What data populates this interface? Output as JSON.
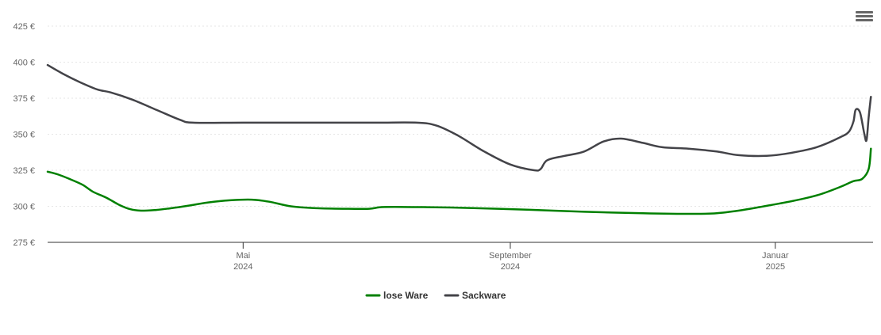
{
  "chart_data": {
    "type": "line",
    "title": "",
    "xlabel": "",
    "ylabel": "",
    "y_ticks": [
      "275 €",
      "300 €",
      "325 €",
      "350 €",
      "375 €",
      "400 €",
      "425 €"
    ],
    "y_tick_values": [
      275,
      300,
      325,
      350,
      375,
      400,
      425
    ],
    "ylim": [
      275,
      425
    ],
    "x_range": [
      "2024-02-01",
      "2025-02-15"
    ],
    "x_ticks": [
      {
        "date": "2024-05-01",
        "month": "Mai",
        "year": "2024"
      },
      {
        "date": "2024-09-01",
        "month": "September",
        "year": "2024"
      },
      {
        "date": "2025-01-01",
        "month": "Januar",
        "year": "2025"
      }
    ],
    "grid": true,
    "legend_position": "bottom-center",
    "series": [
      {
        "name": "lose Ware",
        "color": "#008000",
        "points": [
          [
            "2024-02-01",
            324
          ],
          [
            "2024-02-06",
            322
          ],
          [
            "2024-02-11",
            319
          ],
          [
            "2024-02-17",
            315
          ],
          [
            "2024-02-22",
            310
          ],
          [
            "2024-02-28",
            306
          ],
          [
            "2024-03-05",
            301
          ],
          [
            "2024-03-10",
            298
          ],
          [
            "2024-03-15",
            297
          ],
          [
            "2024-03-22",
            297.5
          ],
          [
            "2024-03-28",
            298.5
          ],
          [
            "2024-04-06",
            300.5
          ],
          [
            "2024-04-15",
            302.7
          ],
          [
            "2024-04-25",
            304.2
          ],
          [
            "2024-05-05",
            304.6
          ],
          [
            "2024-05-13",
            303.2
          ],
          [
            "2024-05-23",
            300.0
          ],
          [
            "2024-06-04",
            298.7
          ],
          [
            "2024-06-16",
            298.3
          ],
          [
            "2024-06-28",
            298.3
          ],
          [
            "2024-07-05",
            299.5
          ],
          [
            "2024-07-25",
            299.4
          ],
          [
            "2024-08-15",
            298.8
          ],
          [
            "2024-09-10",
            297.6
          ],
          [
            "2024-10-05",
            296.2
          ],
          [
            "2024-11-01",
            295.2
          ],
          [
            "2024-11-25",
            294.8
          ],
          [
            "2024-12-05",
            295.2
          ],
          [
            "2024-12-15",
            297.0
          ],
          [
            "2024-12-25",
            299.5
          ],
          [
            "2025-01-10",
            304.0
          ],
          [
            "2025-01-21",
            308.0
          ],
          [
            "2025-01-31",
            313.5
          ],
          [
            "2025-02-06",
            317.5
          ],
          [
            "2025-02-10",
            319.0
          ],
          [
            "2025-02-13",
            326.0
          ],
          [
            "2025-02-14",
            340.0
          ]
        ]
      },
      {
        "name": "Sackware",
        "color": "#434348",
        "points": [
          [
            "2024-02-01",
            398
          ],
          [
            "2024-02-08",
            392
          ],
          [
            "2024-02-16",
            386
          ],
          [
            "2024-02-24",
            381
          ],
          [
            "2024-03-01",
            379
          ],
          [
            "2024-03-11",
            374
          ],
          [
            "2024-03-22",
            367
          ],
          [
            "2024-04-02",
            360
          ],
          [
            "2024-04-08",
            358
          ],
          [
            "2024-05-01",
            358
          ],
          [
            "2024-06-01",
            358
          ],
          [
            "2024-07-01",
            358
          ],
          [
            "2024-07-20",
            358
          ],
          [
            "2024-07-29",
            356
          ],
          [
            "2024-08-08",
            349
          ],
          [
            "2024-08-20",
            338
          ],
          [
            "2024-09-01",
            329
          ],
          [
            "2024-09-12",
            325
          ],
          [
            "2024-09-15",
            326
          ],
          [
            "2024-09-18",
            332
          ],
          [
            "2024-09-26",
            335
          ],
          [
            "2024-10-05",
            338
          ],
          [
            "2024-10-14",
            345
          ],
          [
            "2024-10-22",
            347
          ],
          [
            "2024-11-01",
            344
          ],
          [
            "2024-11-10",
            341
          ],
          [
            "2024-11-22",
            340
          ],
          [
            "2024-12-05",
            338
          ],
          [
            "2024-12-15",
            335.5
          ],
          [
            "2024-12-28",
            335
          ],
          [
            "2025-01-08",
            337
          ],
          [
            "2025-01-20",
            341
          ],
          [
            "2025-01-31",
            348
          ],
          [
            "2025-02-04",
            352
          ],
          [
            "2025-02-06",
            359
          ],
          [
            "2025-02-07",
            367
          ],
          [
            "2025-02-09",
            365
          ],
          [
            "2025-02-11",
            350
          ],
          [
            "2025-02-12",
            346
          ],
          [
            "2025-02-13",
            362
          ],
          [
            "2025-02-14",
            376
          ]
        ]
      }
    ]
  },
  "ui": {
    "menu_icon": "hamburger-menu-icon"
  }
}
